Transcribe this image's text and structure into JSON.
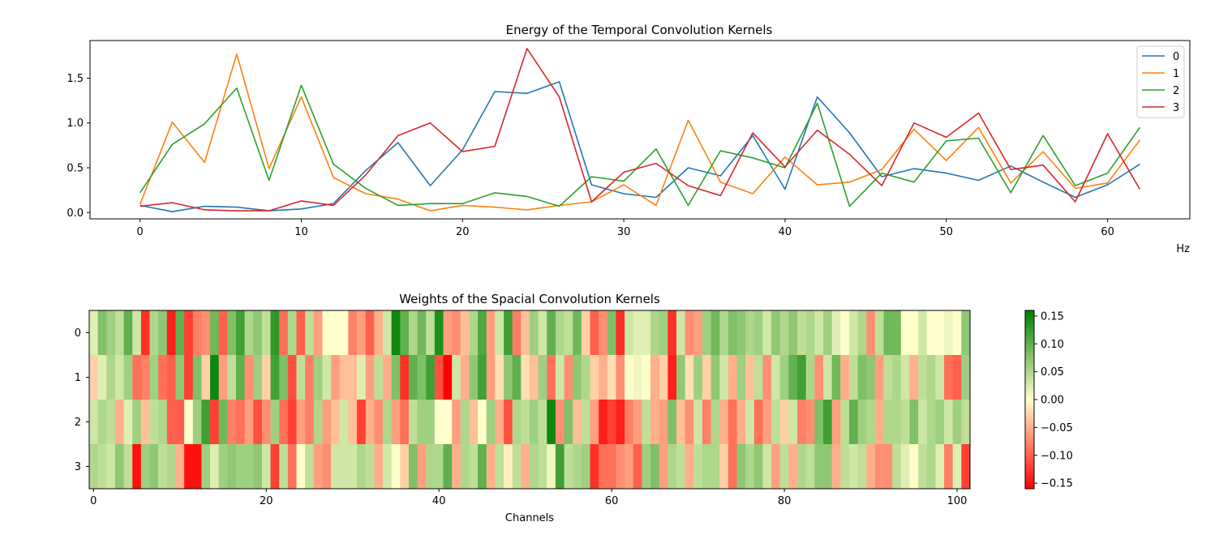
{
  "chart_data": [
    {
      "type": "line",
      "title": "Energy of the Temporal Convolution Kernels",
      "xlabel": "Hz",
      "ylabel": "",
      "xlim": [
        -3.1,
        65.1
      ],
      "ylim": [
        -0.07,
        1.92
      ],
      "xticks": [
        0,
        10,
        20,
        30,
        40,
        50,
        60
      ],
      "yticks": [
        0.0,
        0.5,
        1.0,
        1.5
      ],
      "xtick_labels": [
        "0",
        "10",
        "20",
        "30",
        "40",
        "50",
        "60"
      ],
      "ytick_labels": [
        "0.0",
        "0.5",
        "1.0",
        "1.5"
      ],
      "legend_position": "top-right",
      "x": [
        0,
        2,
        4,
        6,
        8,
        10,
        12,
        14,
        16,
        18,
        20,
        22,
        24,
        26,
        28,
        30,
        32,
        34,
        36,
        38,
        40,
        42,
        44,
        46,
        48,
        50,
        52,
        54,
        56,
        58,
        60,
        62
      ],
      "series": [
        {
          "name": "0",
          "color": "#1f77b4",
          "values": [
            0.08,
            0.01,
            0.07,
            0.06,
            0.02,
            0.04,
            0.1,
            0.47,
            0.78,
            0.3,
            0.7,
            1.35,
            1.33,
            1.46,
            0.31,
            0.21,
            0.17,
            0.5,
            0.41,
            0.86,
            0.26,
            1.29,
            0.89,
            0.4,
            0.49,
            0.44,
            0.36,
            0.52,
            0.34,
            0.17,
            0.31,
            0.54
          ]
        },
        {
          "name": "1",
          "color": "#ff7f0e",
          "values": [
            0.09,
            1.01,
            0.56,
            1.77,
            0.49,
            1.29,
            0.39,
            0.21,
            0.15,
            0.02,
            0.08,
            0.06,
            0.03,
            0.08,
            0.12,
            0.31,
            0.08,
            1.03,
            0.34,
            0.21,
            0.62,
            0.31,
            0.34,
            0.48,
            0.93,
            0.58,
            0.95,
            0.33,
            0.68,
            0.27,
            0.33,
            0.81
          ]
        },
        {
          "name": "2",
          "color": "#2ca02c",
          "values": [
            0.22,
            0.76,
            0.99,
            1.39,
            0.36,
            1.42,
            0.54,
            0.27,
            0.08,
            0.1,
            0.1,
            0.22,
            0.18,
            0.07,
            0.4,
            0.35,
            0.71,
            0.08,
            0.69,
            0.61,
            0.5,
            1.22,
            0.07,
            0.44,
            0.34,
            0.8,
            0.83,
            0.22,
            0.86,
            0.3,
            0.44,
            0.95
          ]
        },
        {
          "name": "3",
          "color": "#d62728",
          "values": [
            0.07,
            0.11,
            0.03,
            0.02,
            0.02,
            0.13,
            0.08,
            0.42,
            0.86,
            1.0,
            0.68,
            0.74,
            1.83,
            1.29,
            0.12,
            0.45,
            0.55,
            0.3,
            0.19,
            0.89,
            0.51,
            0.92,
            0.65,
            0.3,
            1.0,
            0.84,
            1.11,
            0.48,
            0.53,
            0.12,
            0.88,
            0.26
          ]
        }
      ]
    },
    {
      "type": "heatmap",
      "title": "Weights of the Spacial Convolution Kernels",
      "xlabel": "Channels",
      "ylabel": "",
      "x_range": [
        -0.5,
        101.5
      ],
      "xticks": [
        0,
        20,
        40,
        60,
        80,
        100
      ],
      "xtick_labels": [
        "0",
        "20",
        "40",
        "60",
        "80",
        "100"
      ],
      "yticks": [
        0,
        1,
        2,
        3
      ],
      "ytick_labels": [
        "0",
        "1",
        "2",
        "3"
      ],
      "colormap": [
        "#ff0000",
        "#ffffcc",
        "#008000"
      ],
      "vmin": -0.16,
      "vmax": 0.16,
      "colorbar_ticks": [
        0.15,
        0.1,
        0.05,
        0.0,
        -0.05,
        -0.1,
        -0.15
      ],
      "colorbar_tick_labels": [
        "0.15",
        "0.10",
        "0.05",
        "0.00",
        "−0.05",
        "−0.10",
        "−0.15"
      ],
      "matrix": [
        [
          0.02,
          0.08,
          0.06,
          0.04,
          0.1,
          0.03,
          -0.13,
          0.05,
          0.07,
          -0.14,
          0.1,
          -0.12,
          -0.08,
          -0.07,
          0.09,
          -0.1,
          0.08,
          0.12,
          0.05,
          0.07,
          0.04,
          0.13,
          -0.09,
          0.05,
          -0.1,
          0.04,
          -0.06,
          0.0,
          0.0,
          0.0,
          -0.08,
          -0.06,
          -0.1,
          -0.05,
          0.03,
          0.15,
          0.1,
          0.05,
          0.09,
          0.04,
          0.14,
          -0.06,
          -0.07,
          -0.04,
          0.05,
          0.11,
          -0.06,
          0.03,
          0.12,
          -0.08,
          -0.04,
          0.06,
          0.03,
          0.1,
          0.05,
          0.04,
          0.09,
          -0.03,
          -0.1,
          -0.07,
          0.08,
          -0.13,
          0.03,
          0.02,
          0.02,
          0.05,
          0.06,
          -0.13,
          0.03,
          -0.07,
          -0.06,
          0.06,
          0.09,
          0.05,
          0.08,
          0.07,
          0.05,
          0.06,
          0.03,
          0.07,
          0.05,
          0.07,
          0.04,
          0.05,
          0.03,
          0.06,
          0.02,
          0.0,
          0.03,
          0.05,
          -0.07,
          0.04,
          0.09,
          0.09,
          0.0,
          0.0,
          0.03,
          0.0,
          0.0,
          0.01,
          0.0,
          0.07
        ],
        [
          -0.03,
          0.02,
          0.05,
          0.03,
          0.06,
          -0.09,
          -0.08,
          0.06,
          -0.09,
          -0.1,
          0.07,
          -0.12,
          0.08,
          -0.03,
          0.15,
          -0.06,
          0.04,
          0.1,
          -0.07,
          0.06,
          -0.03,
          0.12,
          0.08,
          -0.11,
          0.04,
          -0.08,
          0.06,
          0.03,
          -0.06,
          -0.04,
          -0.04,
          0.02,
          -0.06,
          0.04,
          -0.05,
          0.08,
          -0.13,
          0.1,
          0.08,
          0.12,
          -0.11,
          -0.16,
          0.03,
          -0.05,
          0.07,
          0.12,
          -0.06,
          -0.02,
          0.07,
          0.1,
          -0.02,
          -0.04,
          0.06,
          -0.09,
          0.03,
          -0.07,
          0.07,
          0.05,
          -0.03,
          -0.05,
          -0.02,
          -0.07,
          0.0,
          0.01,
          0.0,
          -0.05,
          -0.03,
          -0.14,
          0.07,
          -0.02,
          0.06,
          -0.03,
          0.07,
          0.03,
          -0.05,
          0.06,
          -0.04,
          0.04,
          -0.07,
          0.03,
          0.06,
          0.1,
          0.12,
          0.05,
          -0.07,
          0.03,
          0.09,
          -0.05,
          0.04,
          0.08,
          0.07,
          -0.06,
          0.04,
          0.05,
          0.03,
          -0.05,
          0.04,
          0.05,
          0.03,
          -0.09,
          -0.1,
          0.06
        ],
        [
          0.03,
          0.05,
          0.04,
          -0.05,
          0.02,
          0.06,
          -0.04,
          0.04,
          0.05,
          -0.1,
          -0.1,
          0.0,
          0.06,
          0.12,
          -0.12,
          0.09,
          -0.08,
          -0.09,
          -0.06,
          -0.11,
          -0.07,
          0.06,
          -0.09,
          -0.12,
          -0.06,
          -0.08,
          0.05,
          -0.06,
          -0.04,
          0.03,
          -0.04,
          -0.12,
          -0.05,
          -0.07,
          0.05,
          -0.06,
          -0.09,
          0.04,
          0.06,
          0.06,
          0.0,
          0.0,
          -0.06,
          0.05,
          -0.04,
          0.0,
          0.06,
          -0.05,
          -0.11,
          0.05,
          0.04,
          0.06,
          0.04,
          0.15,
          -0.07,
          0.08,
          -0.04,
          0.04,
          -0.06,
          -0.14,
          -0.12,
          -0.14,
          -0.08,
          -0.06,
          0.04,
          -0.05,
          -0.06,
          0.08,
          -0.04,
          -0.07,
          0.03,
          -0.08,
          0.05,
          -0.05,
          -0.09,
          -0.05,
          0.03,
          -0.09,
          -0.06,
          0.04,
          -0.03,
          0.03,
          -0.08,
          -0.07,
          0.08,
          0.12,
          -0.06,
          0.04,
          0.1,
          0.06,
          0.05,
          -0.05,
          0.05,
          0.05,
          0.04,
          0.08,
          0.03,
          0.05,
          0.06,
          0.03,
          0.06,
          0.04
        ],
        [
          0.05,
          0.04,
          0.03,
          0.07,
          0.04,
          -0.15,
          0.06,
          0.07,
          0.04,
          0.05,
          -0.05,
          -0.15,
          -0.15,
          0.06,
          0.02,
          0.06,
          0.07,
          0.06,
          0.06,
          0.07,
          0.03,
          -0.12,
          0.04,
          -0.09,
          0.0,
          0.04,
          -0.06,
          -0.07,
          0.03,
          0.03,
          0.03,
          0.05,
          0.04,
          -0.05,
          0.03,
          0.0,
          -0.03,
          0.08,
          -0.06,
          0.05,
          0.05,
          0.1,
          -0.05,
          0.05,
          0.04,
          0.1,
          -0.05,
          0.04,
          -0.01,
          0.04,
          -0.05,
          0.05,
          0.04,
          0.01,
          0.12,
          0.04,
          0.05,
          0.06,
          -0.13,
          -0.09,
          -0.09,
          -0.07,
          -0.06,
          -0.1,
          0.06,
          0.08,
          -0.06,
          0.05,
          0.04,
          -0.05,
          0.04,
          0.05,
          0.05,
          -0.03,
          -0.09,
          0.07,
          0.05,
          0.07,
          0.03,
          -0.06,
          0.04,
          -0.05,
          0.05,
          0.04,
          0.07,
          0.07,
          -0.05,
          0.04,
          0.03,
          0.04,
          -0.05,
          -0.07,
          -0.07,
          0.04,
          0.02,
          0.0,
          0.04,
          0.05,
          0.02,
          -0.08,
          0.02,
          -0.12
        ]
      ]
    }
  ]
}
